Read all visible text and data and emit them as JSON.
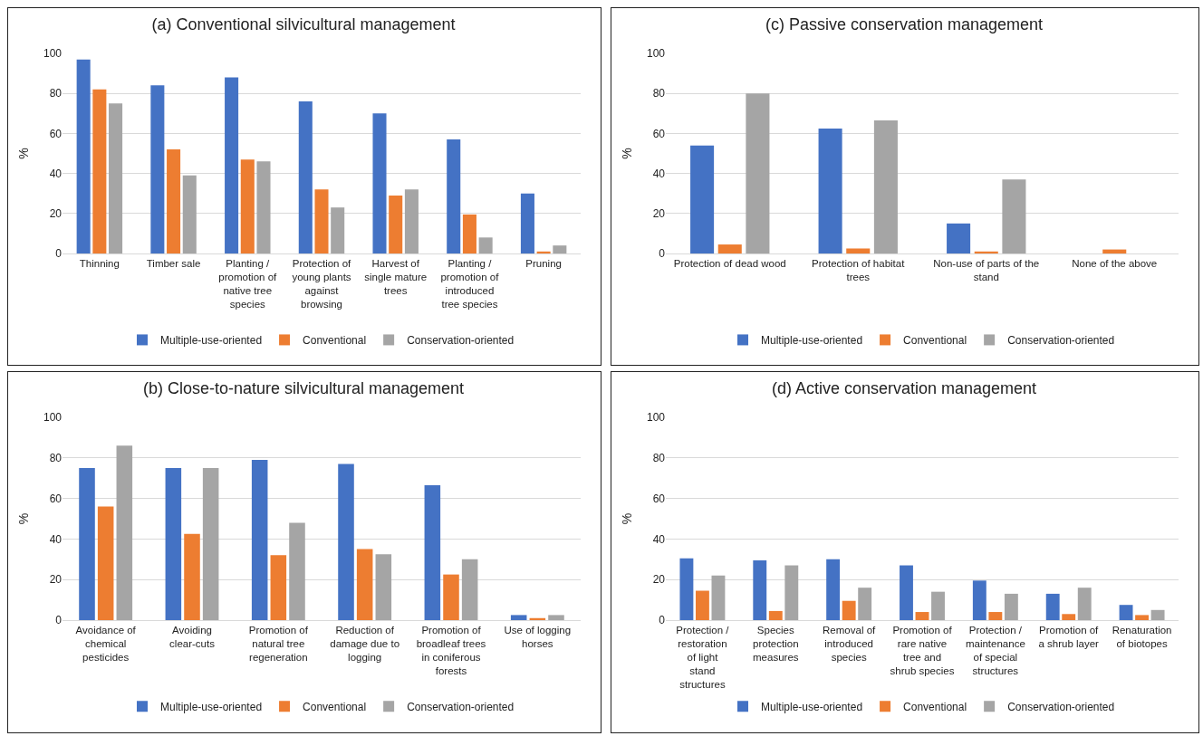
{
  "chart_data": [
    {
      "type": "bar",
      "title": "(a) Conventional silvicultural management",
      "ylabel": "%",
      "categories": [
        "Thinning",
        "Timber sale",
        "Planting / promotion of native tree species",
        "Protection of young plants against browsing",
        "Harvest of single mature trees",
        "Planting / promotion of introduced tree species",
        "Pruning"
      ],
      "ylim": [
        0,
        100
      ],
      "yticks": [
        0,
        20,
        40,
        60,
        80,
        100
      ],
      "grid": "y",
      "legend": "bottom",
      "series": [
        {
          "name": "Multiple-use-oriented",
          "color": "#4472c4",
          "values": [
            97,
            84,
            88,
            76,
            70,
            57,
            30
          ]
        },
        {
          "name": "Conventional",
          "color": "#ed7d31",
          "values": [
            82,
            52,
            47,
            32,
            29,
            19.5,
            1
          ]
        },
        {
          "name": "Conservation-oriented",
          "color": "#a5a5a5",
          "values": [
            75,
            39,
            46,
            23,
            32,
            8,
            4
          ]
        }
      ]
    },
    {
      "type": "bar",
      "title": "(c) Passive conservation management",
      "ylabel": "%",
      "categories": [
        "Protection of dead wood",
        "Protection of habitat trees",
        "Non-use of parts of the stand",
        "None of the above"
      ],
      "ylim": [
        0,
        100
      ],
      "yticks": [
        0,
        20,
        40,
        60,
        80,
        100
      ],
      "grid": "y",
      "legend": "bottom",
      "series": [
        {
          "name": "Multiple-use-oriented",
          "color": "#4472c4",
          "values": [
            54,
            62.5,
            15,
            0
          ]
        },
        {
          "name": "Conventional",
          "color": "#ed7d31",
          "values": [
            4.5,
            2.5,
            1,
            2
          ]
        },
        {
          "name": "Conservation-oriented",
          "color": "#a5a5a5",
          "values": [
            80,
            66.5,
            37,
            0
          ]
        }
      ]
    },
    {
      "type": "bar",
      "title": "(b) Close-to-nature silvicultural management",
      "ylabel": "%",
      "categories": [
        "Avoidance of chemical pesticides",
        "Avoiding clear-cuts",
        "Promotion of natural tree regeneration",
        "Reduction of damage due to logging",
        "Promotion of broadleaf trees in coniferous forests",
        "Use of logging horses"
      ],
      "ylim": [
        0,
        100
      ],
      "yticks": [
        0,
        20,
        40,
        60,
        80,
        100
      ],
      "grid": "y",
      "legend": "bottom",
      "series": [
        {
          "name": "Multiple-use-oriented",
          "color": "#4472c4",
          "values": [
            75,
            75,
            79,
            77,
            66.5,
            2.5
          ]
        },
        {
          "name": "Conventional",
          "color": "#ed7d31",
          "values": [
            56,
            42.5,
            32,
            35,
            22.5,
            1
          ]
        },
        {
          "name": "Conservation-oriented",
          "color": "#a5a5a5",
          "values": [
            86,
            75,
            48,
            32.5,
            30,
            2.5
          ]
        }
      ]
    },
    {
      "type": "bar",
      "title": "(d) Active conservation management",
      "ylabel": "%",
      "categories": [
        "Protection / restoration of light stand structures",
        "Species protection measures",
        "Removal of introduced species",
        "Promotion of rare native tree and shrub species",
        "Protection / maintenance of special structures",
        "Promotion of a shrub layer",
        "Renaturation of biotopes"
      ],
      "ylim": [
        0,
        100
      ],
      "yticks": [
        0,
        20,
        40,
        60,
        80,
        100
      ],
      "grid": "y",
      "legend": "bottom",
      "series": [
        {
          "name": "Multiple-use-oriented",
          "color": "#4472c4",
          "values": [
            30.5,
            29.5,
            30,
            27,
            19.5,
            13,
            7.5
          ]
        },
        {
          "name": "Conventional",
          "color": "#ed7d31",
          "values": [
            14.5,
            4.5,
            9.5,
            4,
            4,
            3,
            2.5
          ]
        },
        {
          "name": "Conservation-oriented",
          "color": "#a5a5a5",
          "values": [
            22,
            27,
            16,
            14,
            13,
            16,
            5
          ]
        }
      ]
    }
  ]
}
